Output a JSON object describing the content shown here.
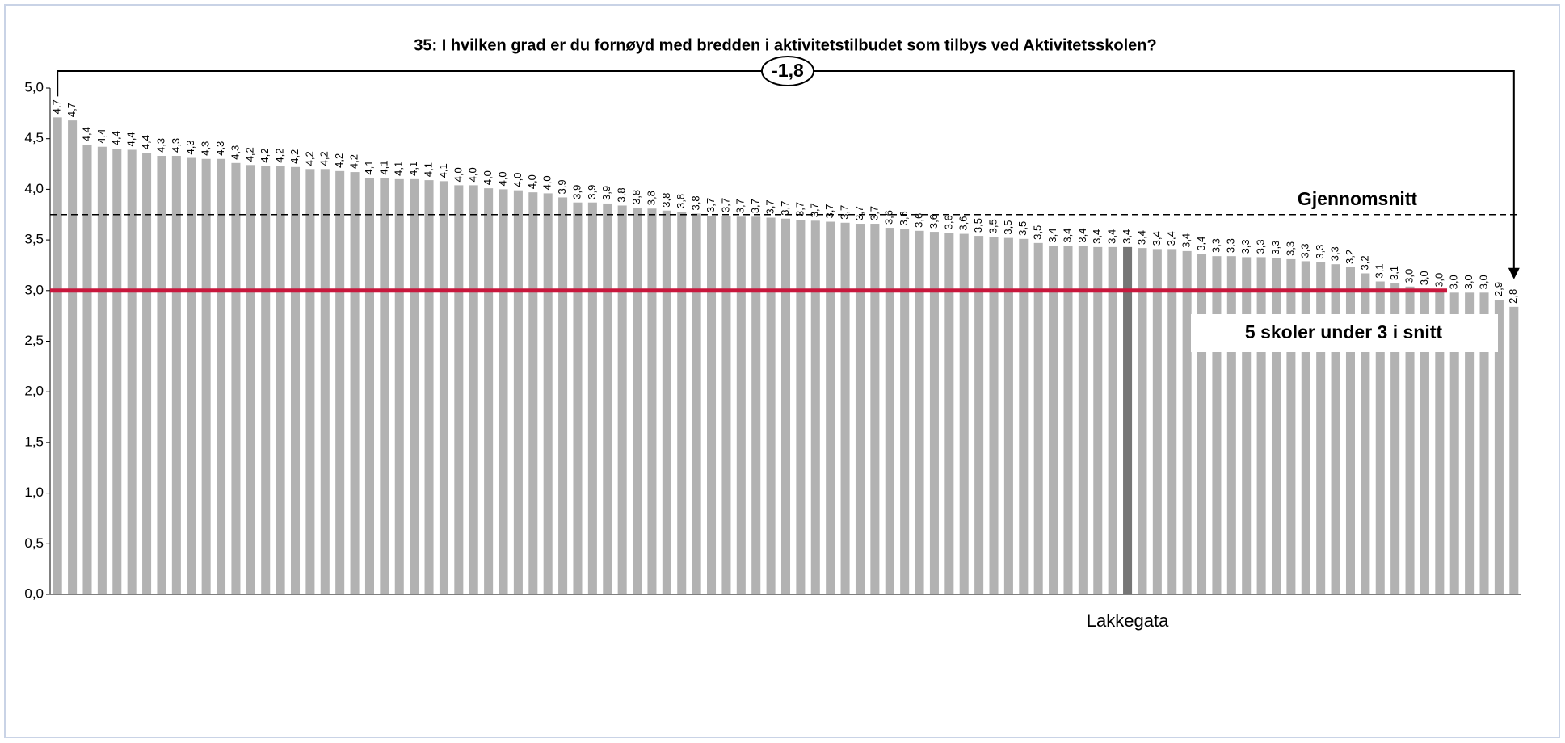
{
  "chart_data": {
    "type": "bar",
    "title": "35: I hvilken grad er du fornøyd med bredden i aktivitetstilbudet som tilbys ved Aktivitetsskolen?",
    "categories": [
      null,
      null,
      null,
      null,
      null,
      null,
      null,
      null,
      null,
      null,
      null,
      null,
      null,
      null,
      null,
      null,
      null,
      null,
      null,
      null,
      null,
      null,
      null,
      null,
      null,
      null,
      null,
      null,
      null,
      null,
      null,
      null,
      null,
      null,
      null,
      null,
      null,
      null,
      null,
      null,
      null,
      null,
      null,
      null,
      null,
      null,
      null,
      null,
      null,
      null,
      null,
      null,
      null,
      null,
      null,
      null,
      null,
      null,
      null,
      null,
      null,
      null,
      null,
      null,
      null,
      null,
      null,
      null,
      null,
      null,
      null,
      null,
      "Lakkegata",
      null,
      null,
      null,
      null,
      null,
      null,
      null,
      null,
      null,
      null,
      null,
      null,
      null,
      null,
      null,
      null,
      null,
      null,
      null,
      null,
      null,
      null,
      null,
      null,
      null,
      null
    ],
    "values": [
      4.71,
      4.68,
      4.44,
      4.42,
      4.4,
      4.39,
      4.36,
      4.33,
      4.33,
      4.31,
      4.3,
      4.3,
      4.26,
      4.24,
      4.23,
      4.23,
      4.22,
      4.2,
      4.2,
      4.18,
      4.17,
      4.11,
      4.11,
      4.1,
      4.1,
      4.09,
      4.08,
      4.04,
      4.04,
      4.01,
      4.0,
      3.99,
      3.97,
      3.96,
      3.92,
      3.87,
      3.87,
      3.86,
      3.84,
      3.82,
      3.81,
      3.79,
      3.78,
      3.76,
      3.74,
      3.74,
      3.73,
      3.73,
      3.72,
      3.71,
      3.7,
      3.69,
      3.68,
      3.67,
      3.66,
      3.66,
      3.62,
      3.61,
      3.59,
      3.58,
      3.57,
      3.56,
      3.54,
      3.53,
      3.52,
      3.51,
      3.47,
      3.44,
      3.44,
      3.44,
      3.43,
      3.43,
      3.43,
      3.42,
      3.41,
      3.41,
      3.39,
      3.36,
      3.34,
      3.34,
      3.33,
      3.33,
      3.32,
      3.31,
      3.29,
      3.28,
      3.26,
      3.23,
      3.17,
      3.09,
      3.07,
      3.04,
      3.02,
      3.0,
      2.98,
      2.98,
      2.98,
      2.91,
      2.84
    ],
    "value_labels": [
      "4,7",
      "4,7",
      "4,4",
      "4,4",
      "4,4",
      "4,4",
      "4,4",
      "4,3",
      "4,3",
      "4,3",
      "4,3",
      "4,3",
      "4,3",
      "4,2",
      "4,2",
      "4,2",
      "4,2",
      "4,2",
      "4,2",
      "4,2",
      "4,2",
      "4,1",
      "4,1",
      "4,1",
      "4,1",
      "4,1",
      "4,1",
      "4,0",
      "4,0",
      "4,0",
      "4,0",
      "4,0",
      "4,0",
      "4,0",
      "3,9",
      "3,9",
      "3,9",
      "3,9",
      "3,8",
      "3,8",
      "3,8",
      "3,8",
      "3,8",
      "3,8",
      "3,7",
      "3,7",
      "3,7",
      "3,7",
      "3,7",
      "3,7",
      "3,7",
      "3,7",
      "3,7",
      "3,7",
      "3,7",
      "3,7",
      "3,6",
      "3,6",
      "3,6",
      "3,6",
      "3,6",
      "3,6",
      "3,5",
      "3,5",
      "3,5",
      "3,5",
      "3,5",
      "3,4",
      "3,4",
      "3,4",
      "3,4",
      "3,4",
      "3,4",
      "3,4",
      "3,4",
      "3,4",
      "3,4",
      "3,4",
      "3,3",
      "3,3",
      "3,3",
      "3,3",
      "3,3",
      "3,3",
      "3,3",
      "3,3",
      "3,3",
      "3,2",
      "3,2",
      "3,1",
      "3,1",
      "3,0",
      "3,0",
      "3,0",
      "3,0",
      "3,0",
      "3,0",
      "2,9",
      "2,8"
    ],
    "color": "#b2b2b2",
    "highlight_color": "#767676",
    "ylim": [
      0,
      5
    ],
    "yticks": [
      {
        "value": 0,
        "label": "0,0"
      },
      {
        "value": 0.5,
        "label": "0,5"
      },
      {
        "value": 1,
        "label": "1,0"
      },
      {
        "value": 1.5,
        "label": "1,5"
      },
      {
        "value": 2,
        "label": "2,0"
      },
      {
        "value": 2.5,
        "label": "2,5"
      },
      {
        "value": 3,
        "label": "3,0"
      },
      {
        "value": 3.5,
        "label": "3,5"
      },
      {
        "value": 4,
        "label": "4,0"
      },
      {
        "value": 4.5,
        "label": "4,5"
      },
      {
        "value": 5,
        "label": "5,0"
      }
    ],
    "grid": false,
    "average": 3.75,
    "average_label": "Gjennomsnitt",
    "threshold": 3,
    "threshold_color": "#c8173c",
    "threshold_label": "5 skoler under 3 i snitt",
    "range_label": "-1,8"
  }
}
